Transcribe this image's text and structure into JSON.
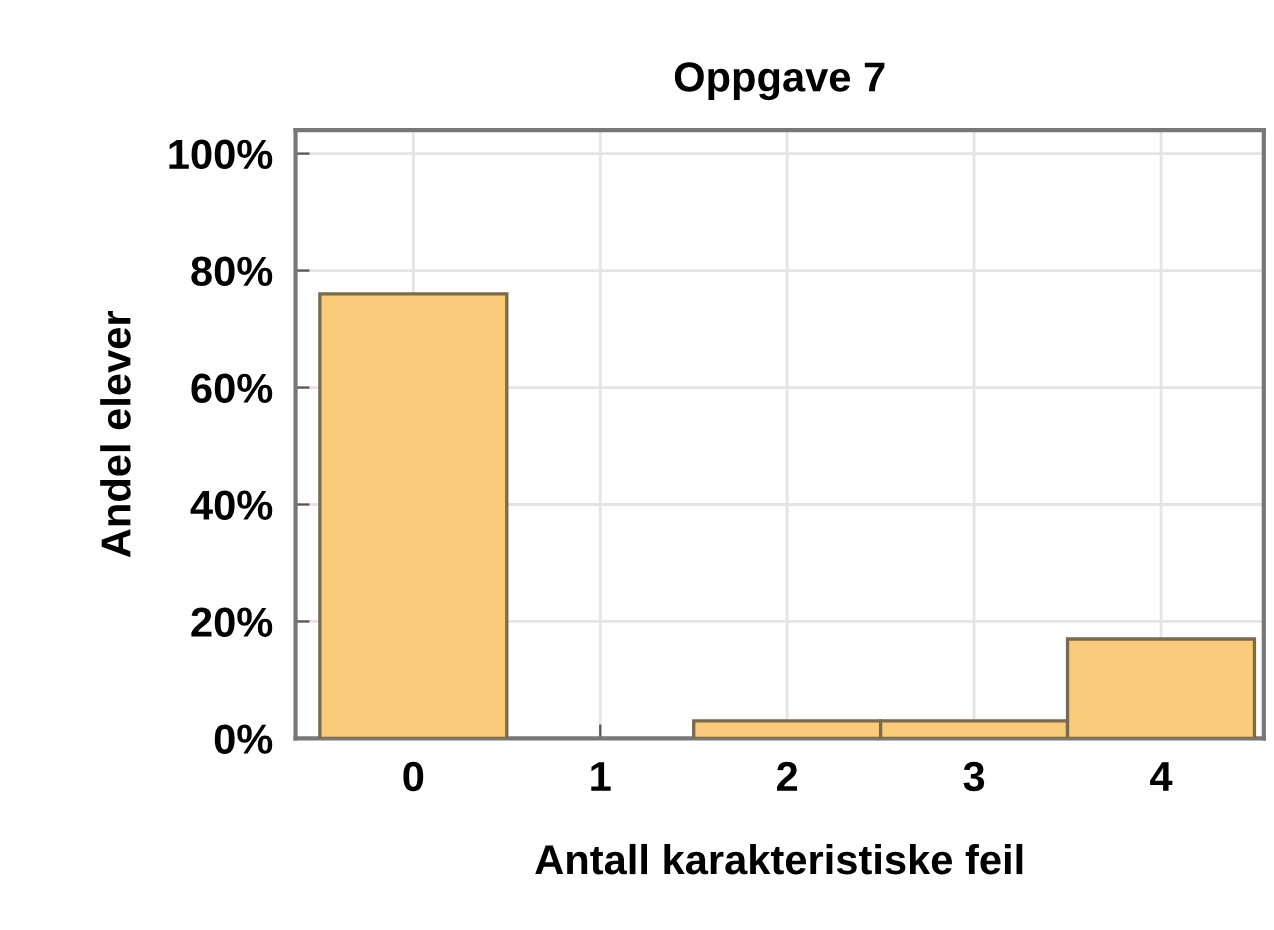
{
  "chart_data": {
    "type": "histogram",
    "title": "Oppgave 7",
    "xlabel": "Antall karakteristiske feil",
    "ylabel": "Andel elever",
    "bins": [
      -0.5,
      0.5,
      1.5,
      2.5,
      3.5,
      4.5
    ],
    "values": [
      76,
      0,
      3,
      3,
      17
    ],
    "color": "#f9cb7a",
    "xlim": [
      -0.63,
      4.55
    ],
    "xticks": [
      0,
      1,
      2,
      3,
      4
    ],
    "ylim": [
      0,
      104
    ],
    "yticks": [
      {
        "value": 0,
        "label": "0%"
      },
      {
        "value": 20,
        "label": "20%"
      },
      {
        "value": 40,
        "label": "40%"
      },
      {
        "value": 60,
        "label": "60%"
      },
      {
        "value": 80,
        "label": "80%"
      },
      {
        "value": 100,
        "label": "100%"
      }
    ],
    "grid": true
  }
}
